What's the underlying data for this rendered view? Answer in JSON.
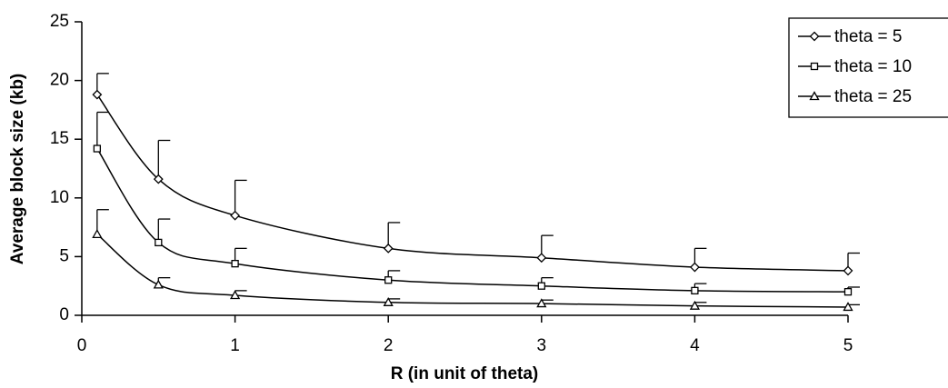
{
  "chart_data": {
    "type": "line",
    "xlabel": "R (in unit of theta)",
    "ylabel": "Average block size (kb)",
    "x": [
      0.1,
      0.5,
      1,
      2,
      3,
      4,
      5
    ],
    "xlim": [
      0,
      5
    ],
    "xticks": [
      0,
      1,
      2,
      3,
      4,
      5
    ],
    "ylim": [
      0,
      25
    ],
    "yticks": [
      0,
      5,
      10,
      15,
      20,
      25
    ],
    "legend": "top-right",
    "series": [
      {
        "name": "theta = 5",
        "color": "#000000",
        "marker": "diamond",
        "values": [
          18.8,
          11.6,
          8.5,
          5.7,
          4.9,
          4.1,
          3.8
        ],
        "errors": [
          1.8,
          3.3,
          3.0,
          2.2,
          1.9,
          1.6,
          1.5
        ]
      },
      {
        "name": "theta = 10",
        "color": "#000000",
        "marker": "square",
        "values": [
          14.2,
          6.2,
          4.4,
          3.0,
          2.5,
          2.1,
          2.0
        ],
        "errors": [
          3.1,
          2.0,
          1.3,
          0.8,
          0.7,
          0.6,
          0.4
        ]
      },
      {
        "name": "theta = 25",
        "color": "#000000",
        "marker": "triangle",
        "values": [
          6.9,
          2.6,
          1.7,
          1.1,
          1.0,
          0.8,
          0.7
        ],
        "errors": [
          2.1,
          0.6,
          0.4,
          0.3,
          0.3,
          0.3,
          0.2
        ]
      }
    ]
  }
}
